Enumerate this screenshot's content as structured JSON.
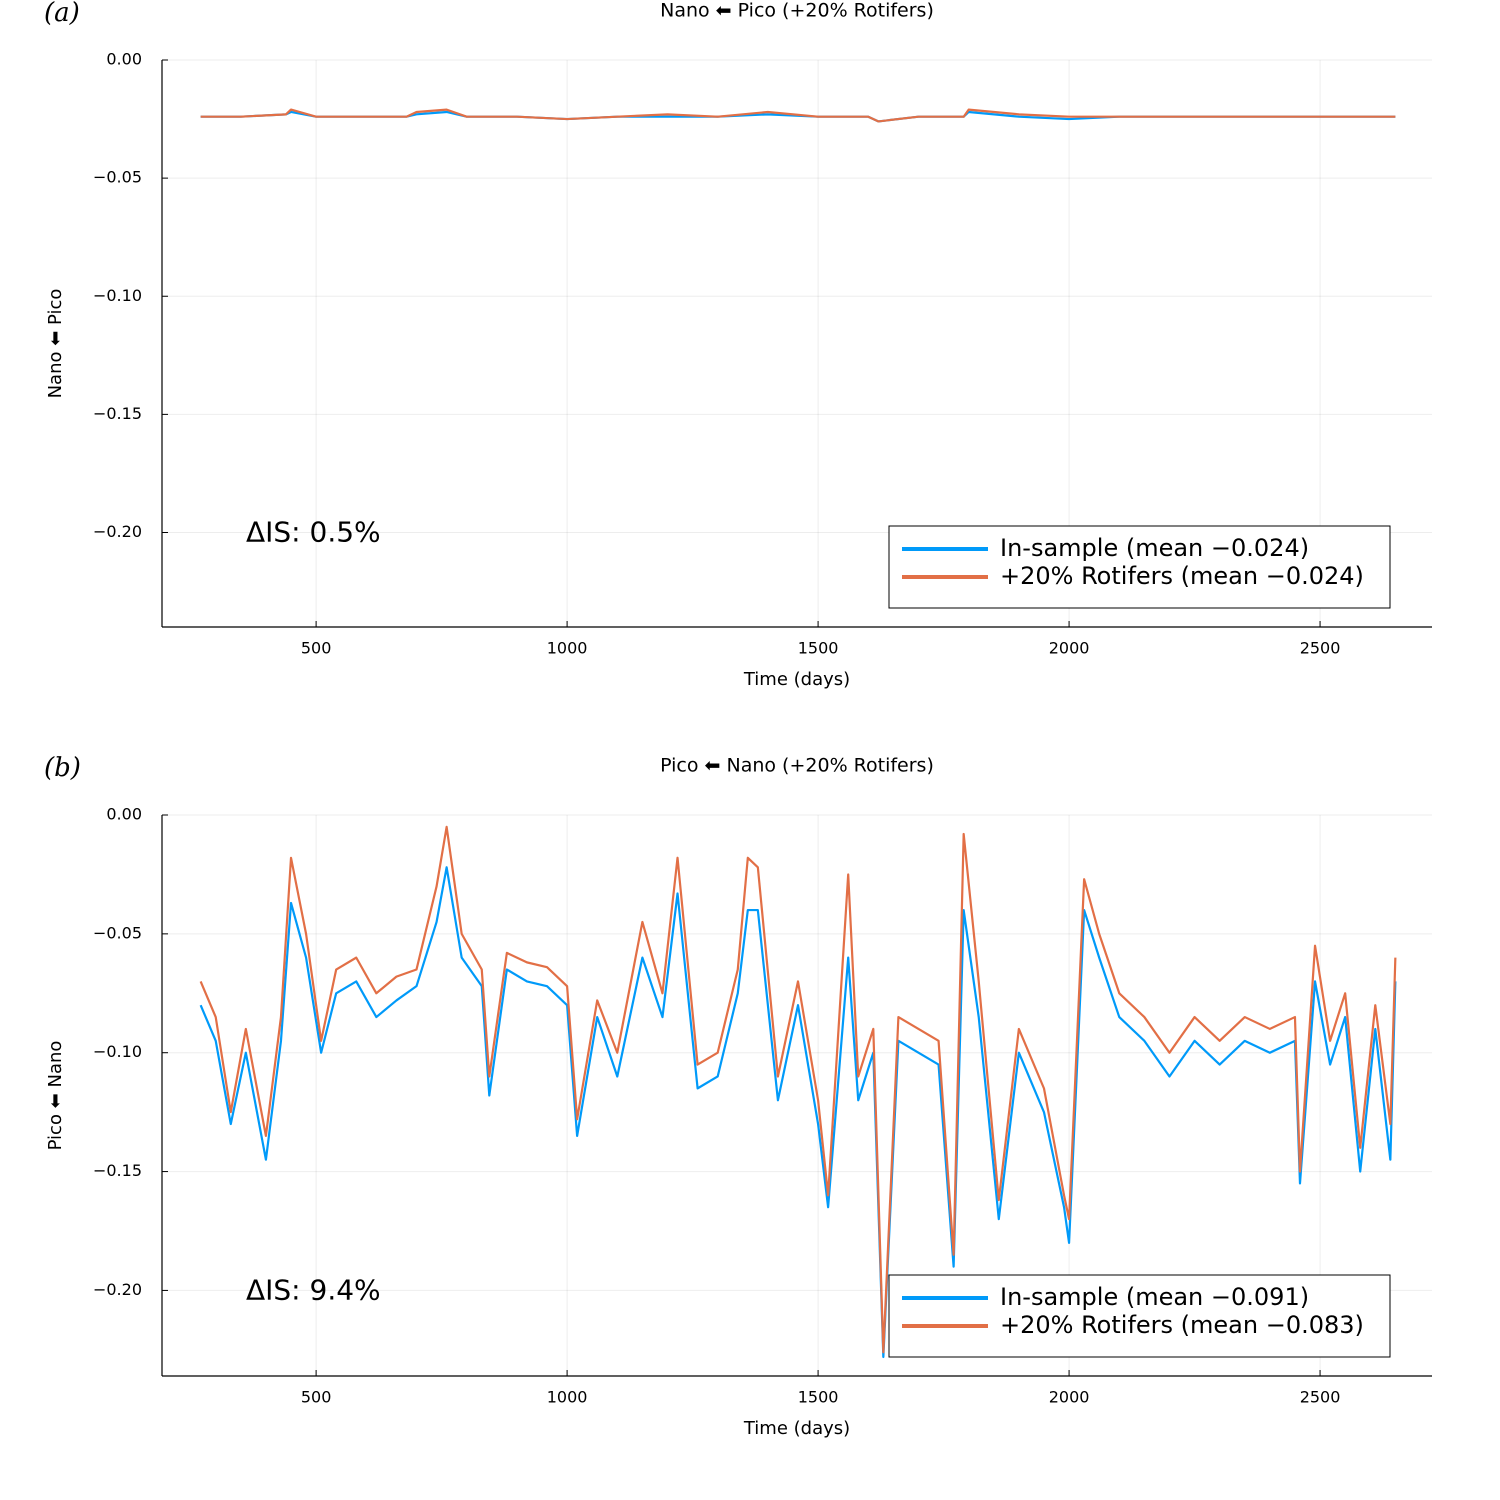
{
  "chart_data": [
    {
      "type": "line",
      "panel_label": "(a)",
      "title": "Nano ⬅ Pico (+20% Rotifers)",
      "xlabel": "Time (days)",
      "ylabel": "Nano ⬅ Pico",
      "annotation": "ΔIS: 0.5%",
      "grid": true,
      "legend": "bottom right",
      "xlim": [
        193,
        2723
      ],
      "xticks": [
        500,
        1000,
        1500,
        2000,
        2500
      ],
      "ylim": [
        -0.24,
        0
      ],
      "yticks": [
        {
          "value": 0,
          "label": "0.00"
        },
        {
          "value": -0.05,
          "label": "−0.05"
        },
        {
          "value": -0.1,
          "label": "−0.10"
        },
        {
          "value": -0.15,
          "label": "−0.15"
        },
        {
          "value": -0.2,
          "label": "−0.20"
        }
      ],
      "x": [
        270,
        350,
        440,
        450,
        500,
        600,
        680,
        700,
        760,
        800,
        900,
        1000,
        1100,
        1200,
        1300,
        1400,
        1500,
        1600,
        1620,
        1700,
        1790,
        1800,
        1900,
        2000,
        2100,
        2200,
        2300,
        2400,
        2500,
        2600,
        2650
      ],
      "series": [
        {
          "name": "In-sample (mean −0.024)",
          "color": "#009af9",
          "values": [
            -0.024,
            -0.024,
            -0.023,
            -0.022,
            -0.024,
            -0.024,
            -0.024,
            -0.023,
            -0.022,
            -0.024,
            -0.024,
            -0.025,
            -0.024,
            -0.024,
            -0.024,
            -0.023,
            -0.024,
            -0.024,
            -0.026,
            -0.024,
            -0.024,
            -0.022,
            -0.024,
            -0.025,
            -0.024,
            -0.024,
            -0.024,
            -0.024,
            -0.024,
            -0.024,
            -0.024
          ]
        },
        {
          "name": "+20% Rotifers (mean −0.024)",
          "color": "#e26f46",
          "values": [
            -0.024,
            -0.024,
            -0.023,
            -0.021,
            -0.024,
            -0.024,
            -0.024,
            -0.022,
            -0.021,
            -0.024,
            -0.024,
            -0.025,
            -0.024,
            -0.023,
            -0.024,
            -0.022,
            -0.024,
            -0.024,
            -0.026,
            -0.024,
            -0.024,
            -0.021,
            -0.023,
            -0.024,
            -0.024,
            -0.024,
            -0.024,
            -0.024,
            -0.024,
            -0.024,
            -0.024
          ]
        }
      ]
    },
    {
      "type": "line",
      "panel_label": "(b)",
      "title": "Pico ⬅ Nano (+20% Rotifers)",
      "xlabel": "Time (days)",
      "ylabel": "Pico ⬅ Nano",
      "annotation": "ΔIS: 9.4%",
      "grid": true,
      "legend": "bottom right",
      "xlim": [
        193,
        2723
      ],
      "xticks": [
        500,
        1000,
        1500,
        2000,
        2500
      ],
      "ylim": [
        -0.236,
        0
      ],
      "yticks": [
        {
          "value": 0,
          "label": "0.00"
        },
        {
          "value": -0.05,
          "label": "−0.05"
        },
        {
          "value": -0.1,
          "label": "−0.10"
        },
        {
          "value": -0.15,
          "label": "−0.15"
        },
        {
          "value": -0.2,
          "label": "−0.20"
        }
      ],
      "x": [
        270,
        300,
        330,
        360,
        400,
        430,
        450,
        480,
        510,
        540,
        580,
        620,
        660,
        700,
        740,
        760,
        790,
        830,
        845,
        880,
        920,
        960,
        1000,
        1020,
        1060,
        1100,
        1150,
        1190,
        1220,
        1260,
        1300,
        1340,
        1360,
        1380,
        1420,
        1460,
        1500,
        1520,
        1560,
        1580,
        1610,
        1630,
        1660,
        1700,
        1740,
        1770,
        1790,
        1820,
        1860,
        1900,
        1950,
        1990,
        2000,
        2030,
        2060,
        2100,
        2150,
        2200,
        2250,
        2300,
        2350,
        2400,
        2450,
        2460,
        2490,
        2520,
        2550,
        2580,
        2610,
        2640,
        2650
      ],
      "series": [
        {
          "name": "In-sample (mean −0.091)",
          "color": "#009af9",
          "values": [
            -0.08,
            -0.095,
            -0.13,
            -0.1,
            -0.145,
            -0.095,
            -0.037,
            -0.06,
            -0.1,
            -0.075,
            -0.07,
            -0.085,
            -0.078,
            -0.072,
            -0.045,
            -0.022,
            -0.06,
            -0.072,
            -0.118,
            -0.065,
            -0.07,
            -0.072,
            -0.08,
            -0.135,
            -0.085,
            -0.11,
            -0.06,
            -0.085,
            -0.033,
            -0.115,
            -0.11,
            -0.075,
            -0.04,
            -0.04,
            -0.12,
            -0.08,
            -0.13,
            -0.165,
            -0.06,
            -0.12,
            -0.1,
            -0.228,
            -0.095,
            -0.1,
            -0.105,
            -0.19,
            -0.04,
            -0.085,
            -0.17,
            -0.1,
            -0.125,
            -0.165,
            -0.18,
            -0.04,
            -0.06,
            -0.085,
            -0.095,
            -0.11,
            -0.095,
            -0.105,
            -0.095,
            -0.1,
            -0.095,
            -0.155,
            -0.07,
            -0.105,
            -0.085,
            -0.15,
            -0.09,
            -0.145,
            -0.07
          ]
        },
        {
          "name": "+20% Rotifers (mean −0.083)",
          "color": "#e26f46",
          "values": [
            -0.07,
            -0.085,
            -0.125,
            -0.09,
            -0.135,
            -0.085,
            -0.018,
            -0.05,
            -0.095,
            -0.065,
            -0.06,
            -0.075,
            -0.068,
            -0.065,
            -0.03,
            -0.005,
            -0.05,
            -0.065,
            -0.11,
            -0.058,
            -0.062,
            -0.064,
            -0.072,
            -0.128,
            -0.078,
            -0.1,
            -0.045,
            -0.075,
            -0.018,
            -0.105,
            -0.1,
            -0.065,
            -0.018,
            -0.022,
            -0.11,
            -0.07,
            -0.12,
            -0.16,
            -0.025,
            -0.11,
            -0.09,
            -0.226,
            -0.085,
            -0.09,
            -0.095,
            -0.185,
            -0.008,
            -0.07,
            -0.162,
            -0.09,
            -0.115,
            -0.16,
            -0.17,
            -0.027,
            -0.05,
            -0.075,
            -0.085,
            -0.1,
            -0.085,
            -0.095,
            -0.085,
            -0.09,
            -0.085,
            -0.15,
            -0.055,
            -0.095,
            -0.075,
            -0.14,
            -0.08,
            -0.13,
            -0.06
          ]
        }
      ]
    }
  ]
}
